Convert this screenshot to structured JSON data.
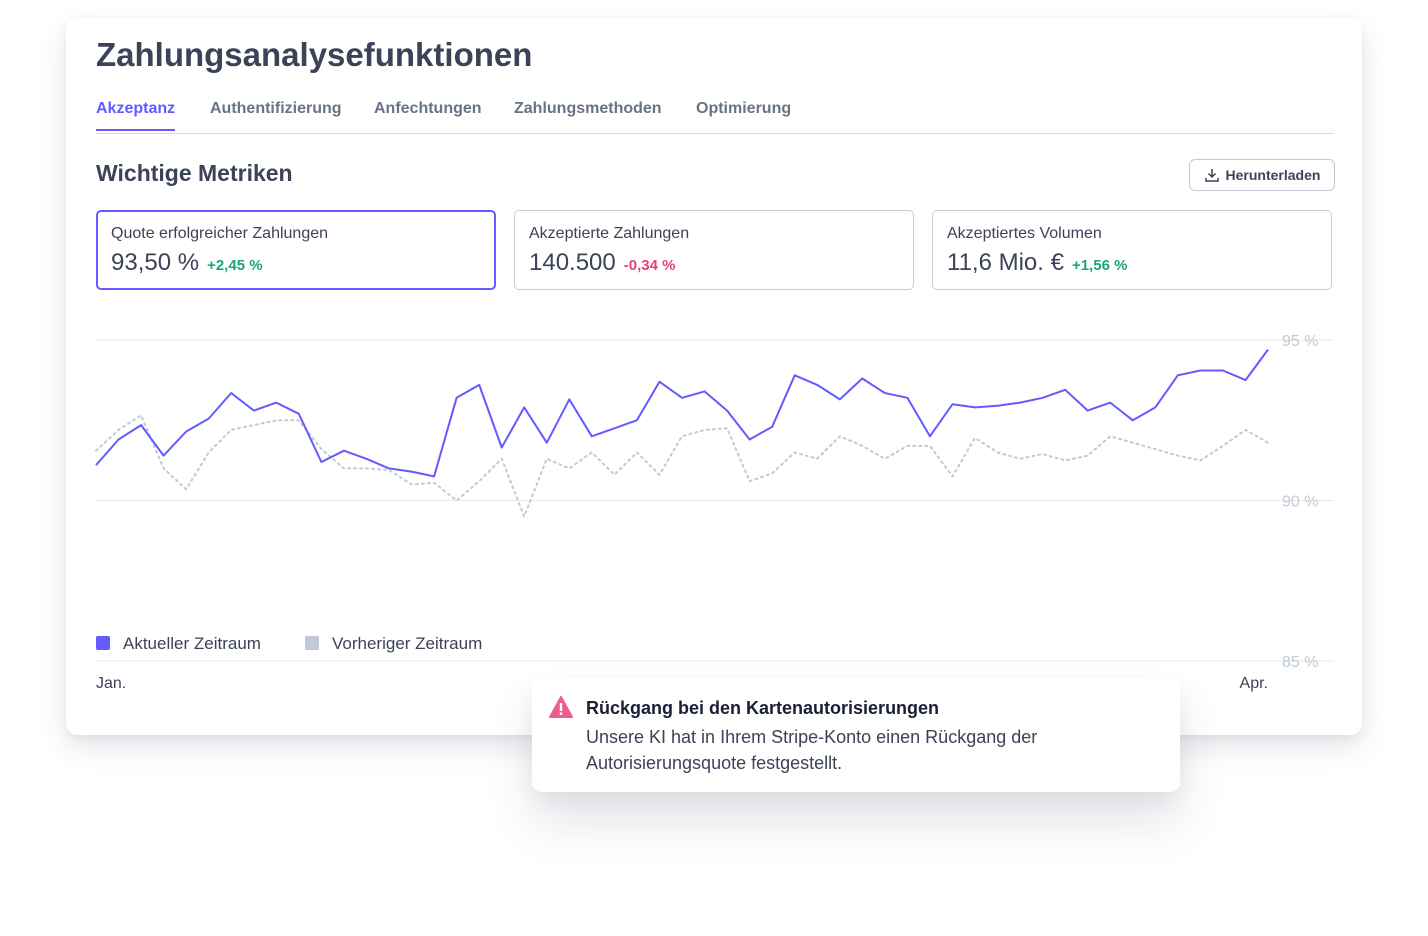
{
  "header": {
    "title": "Zahlungsanalysefunktionen"
  },
  "tabs": [
    "Akzeptanz",
    "Authentifizierung",
    "Anfechtungen",
    "Zahlungsmethoden",
    "Optimierung"
  ],
  "section": {
    "title": "Wichtige Metriken",
    "button": "Herunterladen"
  },
  "metrics": [
    {
      "label": "Quote erfolgreicher Zahlungen",
      "value": "93,50 %",
      "delta": "+2,45 %"
    },
    {
      "label": "Akzeptierte Zahlungen",
      "value": "140.500",
      "delta": "-0,34 %"
    },
    {
      "label": "Akzeptiertes Volumen",
      "value": "11,6 Mio. €",
      "delta": "+1,56 %"
    }
  ],
  "alert": {
    "title": "Rückgang bei den Kartenautorisierungen",
    "text": "Unsere KI hat in Ihrem Stripe-Konto einen Rückgang der Autorisierungsquote festgestellt."
  },
  "chart_data": {
    "type": "line",
    "categories": [
      "Jan.",
      null,
      null,
      null,
      null,
      null,
      null,
      null,
      null,
      null,
      null,
      null,
      null,
      null,
      null,
      null,
      null,
      null,
      null,
      null,
      null,
      null,
      null,
      null,
      null,
      null,
      null,
      null,
      null,
      null,
      null,
      null,
      null,
      null,
      null,
      null,
      null,
      null,
      null,
      null,
      null,
      null,
      null,
      null,
      null,
      null,
      null,
      null,
      null,
      null,
      null,
      null,
      "Apr."
    ],
    "series": [
      {
        "name": "Aktueller Zeitraum",
        "color": "#635bff",
        "style": "solid",
        "values": [
          91.1,
          91.9,
          92.35,
          91.4,
          92.15,
          92.55,
          93.35,
          92.8,
          93.05,
          92.7,
          91.2,
          91.55,
          91.3,
          91.0,
          90.9,
          90.75,
          93.2,
          93.6,
          91.65,
          92.9,
          91.8,
          93.15,
          92.0,
          92.25,
          92.5,
          93.7,
          93.2,
          93.4,
          92.8,
          91.9,
          92.3,
          93.9,
          93.6,
          93.15,
          93.8,
          93.35,
          93.2,
          92.0,
          93.0,
          92.9,
          92.95,
          93.05,
          93.2,
          93.45,
          92.8,
          93.05,
          92.5,
          92.9,
          93.9,
          94.05,
          94.05,
          93.75,
          94.7
        ]
      },
      {
        "name": "Vorheriger Zeitraum",
        "color": "#c1c9d6",
        "style": "dotted",
        "values": [
          91.55,
          92.2,
          92.65,
          91.0,
          90.35,
          91.5,
          92.2,
          92.35,
          92.5,
          92.5,
          91.6,
          91.0,
          91.0,
          90.95,
          90.5,
          90.55,
          90.0,
          90.6,
          91.3,
          89.5,
          91.3,
          91.0,
          91.5,
          90.8,
          91.5,
          90.8,
          92.0,
          92.2,
          92.25,
          90.6,
          90.85,
          91.5,
          91.3,
          92.0,
          91.7,
          91.3,
          91.7,
          91.7,
          90.75,
          91.95,
          91.5,
          91.3,
          91.45,
          91.25,
          91.4,
          92.0,
          91.8,
          91.6,
          91.4,
          91.25,
          91.7,
          92.2,
          91.8
        ]
      }
    ],
    "ylim": [
      85,
      95
    ],
    "yticks": [
      {
        "value": 85,
        "label": "85 %"
      },
      {
        "value": 90,
        "label": "90 %"
      },
      {
        "value": 95,
        "label": "95 %"
      }
    ],
    "grid": true
  }
}
